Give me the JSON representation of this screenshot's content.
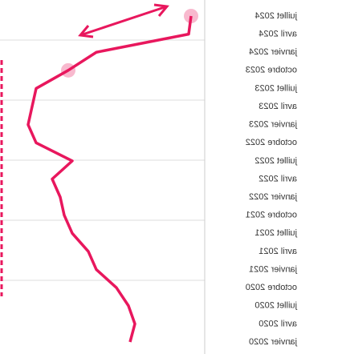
{
  "chart_data": {
    "type": "line",
    "categories": [
      "janvier 2020",
      "avril 2020",
      "juillet 2020",
      "octobre 2020",
      "janvier 2021",
      "avril 2021",
      "juillet 2021",
      "octobre 2021",
      "janvier 2022",
      "avril 2022",
      "juillet 2022",
      "octobre 2022",
      "janvier 2023",
      "avril 2023",
      "juillet 2023",
      "octobre 2023",
      "janvier 2024",
      "avril 2024",
      "juillet 2024"
    ],
    "series": [
      {
        "name": "",
        "color": "#e8175d",
        "values": [
          162,
          168,
          160,
          145,
          120,
          110,
          90,
          80,
          75,
          65,
          90,
          45,
          35,
          40,
          45,
          85,
          120,
          235,
          238
        ]
      }
    ],
    "xlim": [
      0,
      255
    ]
  }
}
